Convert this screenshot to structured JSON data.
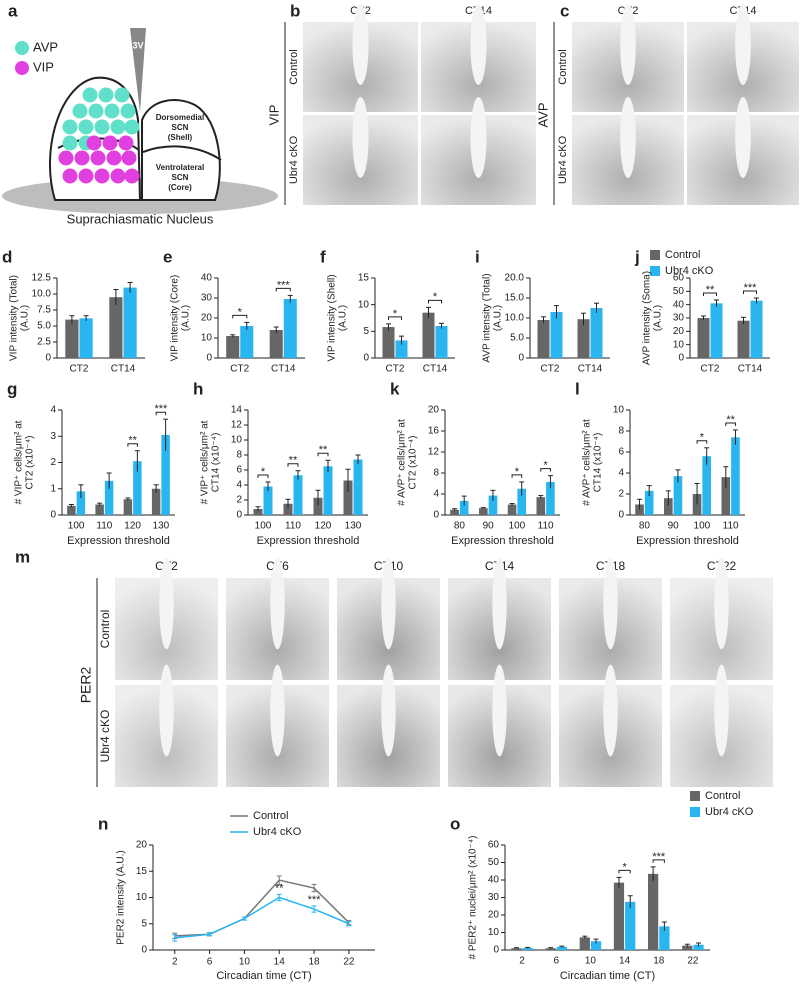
{
  "schematic": {
    "letter": "a",
    "legend": [
      {
        "name": "AVP",
        "color": "#5fe0c8"
      },
      {
        "name": "VIP",
        "color": "#e040e0"
      }
    ],
    "ventricle": "3V",
    "shell_label": [
      "Dorsomedial",
      "SCN",
      "(Shell)"
    ],
    "core_label": [
      "Ventrolateral",
      "SCN",
      "(Core)"
    ],
    "caption": "Suprachiasmatic Nucleus"
  },
  "micrographs": [
    {
      "letter": "b",
      "stain": "VIP",
      "columns": [
        "CT2",
        "CT14"
      ],
      "rows": [
        "Control",
        "Ubr4 cKO"
      ]
    },
    {
      "letter": "c",
      "stain": "AVP",
      "columns": [
        "CT2",
        "CT14"
      ],
      "rows": [
        "Control",
        "Ubr4 cKO"
      ]
    },
    {
      "letter": "m",
      "stain": "PER2",
      "columns": [
        "CT2",
        "CT6",
        "CT10",
        "CT14",
        "CT18",
        "CT22"
      ],
      "rows": [
        "Control",
        "Ubr4 cKO"
      ]
    }
  ],
  "legend": {
    "series": [
      {
        "name": "Control",
        "color": "#666666"
      },
      {
        "name": "Ubr4 cKO",
        "color": "#29b6f0"
      }
    ]
  },
  "chart_data": [
    {
      "letter": "d",
      "type": "bar",
      "ylabel": [
        "VIP intensity (Total)",
        "(A.U.)"
      ],
      "categories": [
        "CT2",
        "CT14"
      ],
      "series": [
        {
          "values": [
            6.0,
            9.5
          ],
          "errors": [
            0.6,
            1.2
          ]
        },
        {
          "values": [
            6.2,
            11.0
          ],
          "errors": [
            0.4,
            0.8
          ]
        }
      ],
      "ylim": [
        0,
        12.5
      ],
      "yticks": [
        0,
        2.5,
        {
          "value": 5,
          "label": "5.0"
        },
        7.5,
        {
          "value": 10,
          "label": "10.0"
        },
        12.5
      ]
    },
    {
      "letter": "e",
      "type": "bar",
      "ylabel": [
        "VIP intensity (Core)",
        "(A.U.)"
      ],
      "categories": [
        "CT2",
        "CT14"
      ],
      "series": [
        {
          "values": [
            11,
            14
          ],
          "errors": [
            0.6,
            1.5
          ]
        },
        {
          "values": [
            16,
            29.5
          ],
          "errors": [
            1.8,
            1.8
          ]
        }
      ],
      "significance": [
        "*",
        "***"
      ],
      "ylim": [
        0,
        40
      ],
      "yticks": [
        0,
        10,
        20,
        30,
        40
      ]
    },
    {
      "letter": "f",
      "type": "bar",
      "ylabel": [
        "VIP intensity (Shell)",
        "(A.U.)"
      ],
      "categories": [
        "CT2",
        "CT14"
      ],
      "series": [
        {
          "values": [
            5.8,
            8.5
          ],
          "errors": [
            0.6,
            1.0
          ]
        },
        {
          "values": [
            3.3,
            6.0
          ],
          "errors": [
            0.8,
            0.5
          ]
        }
      ],
      "significance": [
        "*",
        "*"
      ],
      "ylim": [
        0,
        15
      ],
      "yticks": [
        0,
        5,
        10,
        15
      ]
    },
    {
      "letter": "i",
      "type": "bar",
      "ylabel": [
        "AVP intensity (Total)",
        "(A.U.)"
      ],
      "categories": [
        "CT2",
        "CT14"
      ],
      "series": [
        {
          "values": [
            9.5,
            9.7
          ],
          "errors": [
            0.8,
            1.5
          ]
        },
        {
          "values": [
            11.5,
            12.5
          ],
          "errors": [
            1.6,
            1.2
          ]
        }
      ],
      "ylim": [
        0,
        20
      ],
      "yticks": [
        0,
        {
          "value": 5,
          "label": "5.0"
        },
        {
          "value": 10,
          "label": "10.0"
        },
        {
          "value": 15,
          "label": "15.0"
        },
        {
          "value": 20,
          "label": "20.0"
        }
      ]
    },
    {
      "letter": "j",
      "type": "bar",
      "ylabel": [
        "AVP intensity (Soma)",
        "(A.U.)"
      ],
      "categories": [
        "CT2",
        "CT14"
      ],
      "series": [
        {
          "values": [
            30,
            28
          ],
          "errors": [
            1.5,
            2.5
          ]
        },
        {
          "values": [
            41,
            43
          ],
          "errors": [
            2.5,
            2.0
          ]
        }
      ],
      "significance": [
        "**",
        "***"
      ],
      "ylim": [
        0,
        60
      ],
      "yticks": [
        0,
        10,
        20,
        30,
        40,
        50,
        60
      ]
    },
    {
      "letter": "g",
      "type": "bar",
      "ylabel": [
        "# VIP⁺ cells/μm² at",
        "CT2 (x10⁻⁴)"
      ],
      "xlabel": "Expression threshold",
      "categories": [
        "100",
        "110",
        "120",
        "130"
      ],
      "series": [
        {
          "values": [
            0.35,
            0.4,
            0.6,
            1.0
          ],
          "errors": [
            0.05,
            0.05,
            0.05,
            0.15
          ]
        },
        {
          "values": [
            0.9,
            1.3,
            2.05,
            3.05
          ],
          "errors": [
            0.25,
            0.3,
            0.4,
            0.6
          ]
        }
      ],
      "significance": [
        null,
        null,
        "**",
        "***"
      ],
      "ylim": [
        0,
        4
      ],
      "yticks": [
        0,
        1,
        2,
        3,
        4
      ]
    },
    {
      "letter": "h",
      "type": "bar",
      "ylabel": [
        "# VIP⁺ cells/μm² at",
        "CT14 (x10⁻⁴)"
      ],
      "xlabel": "Expression threshold",
      "categories": [
        "100",
        "110",
        "120",
        "130"
      ],
      "series": [
        {
          "values": [
            0.8,
            1.5,
            2.3,
            4.6
          ],
          "errors": [
            0.3,
            0.6,
            1.0,
            1.5
          ]
        },
        {
          "values": [
            3.8,
            5.3,
            6.5,
            7.4
          ],
          "errors": [
            0.6,
            0.6,
            0.8,
            0.6
          ]
        }
      ],
      "significance": [
        "*",
        "**",
        "**",
        null
      ],
      "ylim": [
        0,
        14
      ],
      "yticks": [
        0,
        2,
        4,
        6,
        8,
        10,
        12,
        14
      ]
    },
    {
      "letter": "k",
      "type": "bar",
      "ylabel": [
        "# AVP⁺ cells/μm² at",
        "CT2 (x10⁻⁴)"
      ],
      "xlabel": "Expression threshold",
      "categories": [
        "80",
        "90",
        "100",
        "110"
      ],
      "series": [
        {
          "values": [
            1.0,
            1.3,
            2.0,
            3.4
          ],
          "errors": [
            0.2,
            0.1,
            0.2,
            0.3
          ]
        },
        {
          "values": [
            2.7,
            3.7,
            5.0,
            6.3
          ],
          "errors": [
            0.9,
            1.0,
            1.3,
            1.2
          ]
        }
      ],
      "significance": [
        null,
        null,
        "*",
        "*"
      ],
      "ylim": [
        0,
        20
      ],
      "yticks": [
        0,
        4,
        8,
        12,
        16,
        20
      ]
    },
    {
      "letter": "l",
      "type": "bar",
      "ylabel": [
        "# AVP⁺ cells/μm² at",
        "CT14 (x10⁻⁴)"
      ],
      "xlabel": "Expression threshold",
      "categories": [
        "80",
        "90",
        "100",
        "110"
      ],
      "series": [
        {
          "values": [
            1.0,
            1.6,
            2.0,
            3.6
          ],
          "errors": [
            0.5,
            0.7,
            1.0,
            1.0
          ]
        },
        {
          "values": [
            2.3,
            3.7,
            5.6,
            7.4
          ],
          "errors": [
            0.5,
            0.6,
            0.8,
            0.7
          ]
        }
      ],
      "significance": [
        null,
        null,
        "*",
        "**"
      ],
      "ylim": [
        0,
        10
      ],
      "yticks": [
        0,
        2,
        4,
        6,
        8,
        10
      ]
    },
    {
      "letter": "n",
      "type": "line",
      "ylabel": [
        "PER2 intensity (A.U.)"
      ],
      "xlabel": "Circadian time (CT)",
      "x": [
        2,
        6,
        10,
        14,
        18,
        22
      ],
      "xlim": [
        -0.5,
        25
      ],
      "xticks": [
        2,
        6,
        10,
        14,
        18,
        22
      ],
      "series": [
        {
          "name": "Control",
          "color": "#777777",
          "values": [
            2.7,
            3.0,
            6.0,
            13.3,
            11.8,
            5.2
          ],
          "errors": [
            0.5,
            0.3,
            0.3,
            0.8,
            0.7,
            0.4
          ]
        },
        {
          "name": "Ubr4 cKO",
          "color": "#29b6f0",
          "values": [
            2.3,
            3.0,
            6.0,
            10.0,
            7.8,
            5.0
          ],
          "errors": [
            0.6,
            0.3,
            0.3,
            0.6,
            0.6,
            0.4
          ]
        }
      ],
      "significance": [
        null,
        null,
        null,
        "**",
        "***",
        null
      ],
      "ylim": [
        0,
        20
      ],
      "yticks": [
        0,
        5,
        10,
        15,
        20
      ]
    },
    {
      "letter": "o",
      "type": "bar",
      "ylabel": [
        "# PER2⁺ nuclei/μm² (x10⁻⁴)"
      ],
      "xlabel": "Circadian time (CT)",
      "categories": [
        "2",
        "6",
        "10",
        "14",
        "18",
        "22"
      ],
      "series": [
        {
          "name": "Control",
          "color": "#666666",
          "values": [
            1.0,
            1.0,
            7.2,
            38.5,
            43.5,
            2.5
          ],
          "errors": [
            0.3,
            0.3,
            0.7,
            3.0,
            4.0,
            0.8
          ]
        },
        {
          "name": "Ubr4 cKO",
          "color": "#29b6f0",
          "values": [
            1.2,
            1.8,
            5.0,
            27.5,
            13.5,
            3.0
          ],
          "errors": [
            0.3,
            0.4,
            1.2,
            3.5,
            2.5,
            1.0
          ]
        }
      ],
      "significance": [
        null,
        null,
        null,
        "*",
        "***",
        null
      ],
      "ylim": [
        0,
        60
      ],
      "yticks": [
        0,
        10,
        20,
        30,
        40,
        50,
        60
      ]
    }
  ]
}
